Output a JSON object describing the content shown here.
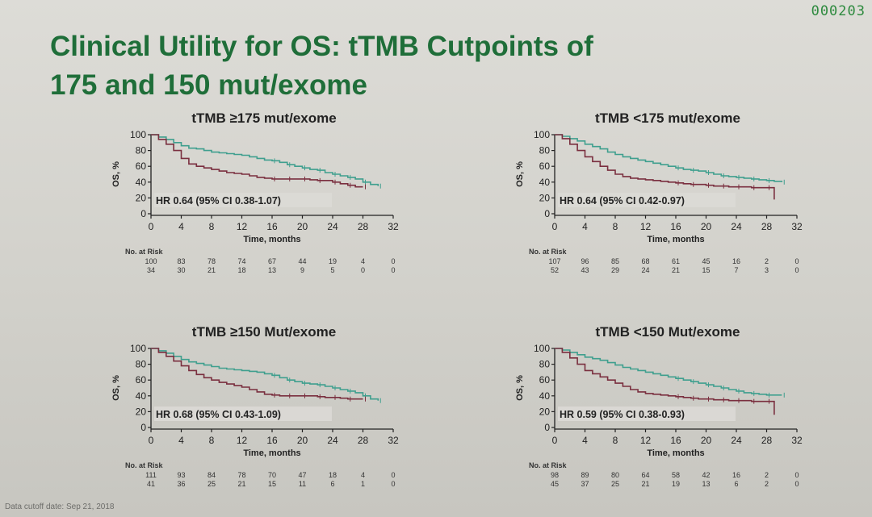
{
  "counter": "000203",
  "title_line1": "Clinical Utility for OS: tTMB Cutpoints of",
  "title_line2": "175 and 150 mut/exome",
  "cutoff": "Data cutoff date: Sep 21, 2018",
  "colors": {
    "high": "#3f9f8e",
    "low": "#7a2f3f",
    "title": "#1f6e39"
  },
  "chart_data": [
    {
      "type": "line",
      "title": "tTMB ≥175 mut/exome",
      "xlabel": "Time, months",
      "ylabel": "OS, %",
      "xlim": [
        0,
        32
      ],
      "ylim": [
        0,
        100
      ],
      "xticks": [
        "0",
        "4",
        "8",
        "12",
        "16",
        "20",
        "24",
        "28",
        "32"
      ],
      "yticks": [
        "0",
        "20",
        "40",
        "60",
        "80",
        "100"
      ],
      "hr_text": "HR 0.64 (95% CI 0.38-1.07)",
      "risk_header": "No. at Risk",
      "risk_rows": [
        [
          "100",
          "83",
          "78",
          "74",
          "67",
          "44",
          "19",
          "4",
          "0"
        ],
        [
          "34",
          "30",
          "21",
          "18",
          "13",
          "9",
          "5",
          "0",
          "0"
        ]
      ],
      "series": [
        {
          "x": [
            0,
            1,
            2,
            3,
            4,
            5,
            6,
            7,
            8,
            9,
            10,
            11,
            12,
            13,
            14,
            15,
            16,
            17,
            18,
            19,
            20,
            21,
            22,
            23,
            24,
            25,
            26,
            27,
            28,
            29,
            30
          ],
          "y": [
            100,
            97,
            94,
            90,
            86,
            83,
            82,
            80,
            78,
            77,
            76,
            75,
            74,
            72,
            70,
            68,
            67,
            65,
            62,
            60,
            58,
            56,
            55,
            52,
            50,
            48,
            46,
            44,
            40,
            37,
            35
          ]
        },
        {
          "x": [
            0,
            1,
            2,
            3,
            4,
            5,
            6,
            7,
            8,
            9,
            10,
            11,
            12,
            13,
            14,
            15,
            16,
            17,
            18,
            19,
            20,
            21,
            22,
            23,
            24,
            25,
            26,
            27,
            28
          ],
          "y": [
            100,
            94,
            88,
            80,
            70,
            63,
            60,
            58,
            56,
            54,
            52,
            51,
            50,
            48,
            46,
            45,
            44,
            44,
            44,
            44,
            44,
            43,
            42,
            42,
            40,
            38,
            36,
            34,
            34
          ]
        }
      ]
    },
    {
      "type": "line",
      "title": "tTMB <175 mut/exome",
      "xlabel": "Time, months",
      "ylabel": "OS, %",
      "xlim": [
        0,
        32
      ],
      "ylim": [
        0,
        100
      ],
      "xticks": [
        "0",
        "4",
        "8",
        "12",
        "16",
        "20",
        "24",
        "28",
        "32"
      ],
      "yticks": [
        "0",
        "20",
        "40",
        "60",
        "80",
        "100"
      ],
      "hr_text": "HR 0.64 (95% CI 0.42-0.97)",
      "risk_header": "No. at Risk",
      "risk_rows": [
        [
          "107",
          "96",
          "85",
          "68",
          "61",
          "45",
          "16",
          "2",
          "0"
        ],
        [
          "52",
          "43",
          "29",
          "24",
          "21",
          "15",
          "7",
          "3",
          "0"
        ]
      ],
      "series": [
        {
          "x": [
            0,
            1,
            2,
            3,
            4,
            5,
            6,
            7,
            8,
            9,
            10,
            11,
            12,
            13,
            14,
            15,
            16,
            17,
            18,
            19,
            20,
            21,
            22,
            23,
            24,
            25,
            26,
            27,
            28,
            29,
            30
          ],
          "y": [
            100,
            98,
            95,
            92,
            88,
            85,
            82,
            78,
            75,
            72,
            70,
            68,
            66,
            64,
            62,
            60,
            58,
            56,
            55,
            54,
            52,
            50,
            48,
            47,
            46,
            45,
            44,
            43,
            42,
            41,
            40
          ]
        },
        {
          "x": [
            0,
            1,
            2,
            3,
            4,
            5,
            6,
            7,
            8,
            9,
            10,
            11,
            12,
            13,
            14,
            15,
            16,
            17,
            18,
            19,
            20,
            21,
            22,
            23,
            24,
            25,
            26,
            27,
            28,
            29
          ],
          "y": [
            100,
            95,
            88,
            80,
            72,
            66,
            60,
            55,
            50,
            47,
            45,
            44,
            43,
            42,
            41,
            40,
            39,
            38,
            37,
            37,
            36,
            35,
            35,
            34,
            34,
            34,
            33,
            33,
            33,
            18
          ]
        }
      ]
    },
    {
      "type": "line",
      "title": "tTMB ≥150 Mut/exome",
      "xlabel": "Time, months",
      "ylabel": "OS, %",
      "xlim": [
        0,
        32
      ],
      "ylim": [
        0,
        100
      ],
      "xticks": [
        "0",
        "4",
        "8",
        "12",
        "16",
        "20",
        "24",
        "28",
        "32"
      ],
      "yticks": [
        "0",
        "20",
        "40",
        "60",
        "80",
        "100"
      ],
      "hr_text": "HR 0.68 (95% CI 0.43-1.09)",
      "risk_header": "No. at Risk",
      "risk_rows": [
        [
          "111",
          "93",
          "84",
          "78",
          "70",
          "47",
          "18",
          "4",
          "0"
        ],
        [
          "41",
          "36",
          "25",
          "21",
          "15",
          "11",
          "6",
          "1",
          "0"
        ]
      ],
      "series": [
        {
          "x": [
            0,
            1,
            2,
            3,
            4,
            5,
            6,
            7,
            8,
            9,
            10,
            11,
            12,
            13,
            14,
            15,
            16,
            17,
            18,
            19,
            20,
            21,
            22,
            23,
            24,
            25,
            26,
            27,
            28,
            29,
            30
          ],
          "y": [
            100,
            97,
            94,
            90,
            86,
            83,
            81,
            79,
            77,
            75,
            74,
            73,
            72,
            71,
            70,
            68,
            66,
            63,
            60,
            58,
            56,
            55,
            54,
            52,
            50,
            48,
            46,
            44,
            40,
            36,
            34
          ]
        },
        {
          "x": [
            0,
            1,
            2,
            3,
            4,
            5,
            6,
            7,
            8,
            9,
            10,
            11,
            12,
            13,
            14,
            15,
            16,
            17,
            18,
            19,
            20,
            21,
            22,
            23,
            24,
            25,
            26,
            27,
            28
          ],
          "y": [
            100,
            95,
            90,
            84,
            78,
            72,
            67,
            63,
            60,
            57,
            55,
            53,
            51,
            48,
            45,
            42,
            41,
            40,
            40,
            40,
            40,
            40,
            39,
            38,
            38,
            37,
            36,
            36,
            36
          ]
        }
      ]
    },
    {
      "type": "line",
      "title": "tTMB <150 Mut/exome",
      "xlabel": "Time, months",
      "ylabel": "OS, %",
      "xlim": [
        0,
        32
      ],
      "ylim": [
        0,
        100
      ],
      "xticks": [
        "0",
        "4",
        "8",
        "12",
        "16",
        "20",
        "24",
        "28",
        "32"
      ],
      "yticks": [
        "0",
        "20",
        "40",
        "60",
        "80",
        "100"
      ],
      "hr_text": "HR 0.59 (95% CI 0.38-0.93)",
      "risk_header": "No. at Risk",
      "risk_rows": [
        [
          "98",
          "89",
          "80",
          "64",
          "58",
          "42",
          "16",
          "2",
          "0"
        ],
        [
          "45",
          "37",
          "25",
          "21",
          "19",
          "13",
          "6",
          "2",
          "0"
        ]
      ],
      "series": [
        {
          "x": [
            0,
            1,
            2,
            3,
            4,
            5,
            6,
            7,
            8,
            9,
            10,
            11,
            12,
            13,
            14,
            15,
            16,
            17,
            18,
            19,
            20,
            21,
            22,
            23,
            24,
            25,
            26,
            27,
            28,
            29,
            30
          ],
          "y": [
            100,
            98,
            95,
            92,
            89,
            87,
            85,
            82,
            79,
            76,
            74,
            72,
            70,
            68,
            66,
            64,
            62,
            60,
            58,
            56,
            54,
            52,
            50,
            48,
            46,
            44,
            43,
            42,
            41,
            41,
            41
          ]
        },
        {
          "x": [
            0,
            1,
            2,
            3,
            4,
            5,
            6,
            7,
            8,
            9,
            10,
            11,
            12,
            13,
            14,
            15,
            16,
            17,
            18,
            19,
            20,
            21,
            22,
            23,
            24,
            25,
            26,
            27,
            28,
            29
          ],
          "y": [
            100,
            95,
            88,
            80,
            72,
            68,
            64,
            60,
            56,
            52,
            48,
            45,
            43,
            42,
            41,
            40,
            39,
            38,
            37,
            36,
            36,
            35,
            35,
            34,
            34,
            34,
            33,
            33,
            33,
            16
          ]
        }
      ]
    }
  ]
}
